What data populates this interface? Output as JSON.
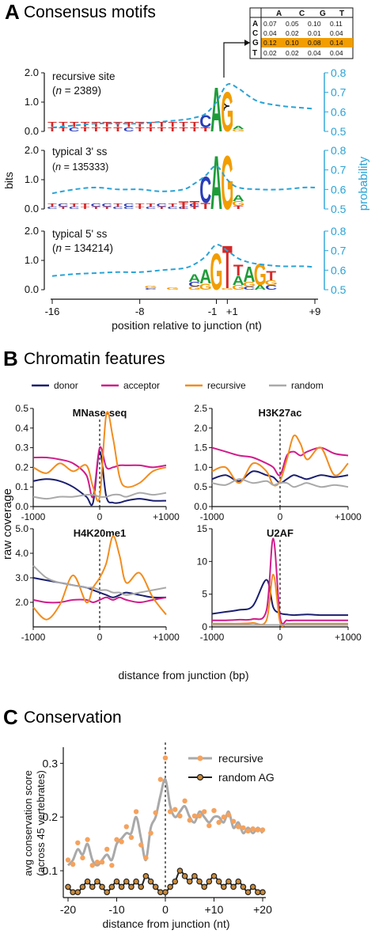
{
  "panelA": {
    "letter": "A",
    "title": "Consensus motifs",
    "y_label": "bits",
    "y2_label": "probability",
    "x_label": "position relative to junction (nt)",
    "x_ticks": [
      "-16",
      "-8",
      "-1",
      "+1",
      "+9"
    ],
    "bits_ticks": [
      "2.0",
      "1.0",
      "0.0"
    ],
    "prob_ticks": [
      "0.8",
      "0.7",
      "0.6",
      "0.5"
    ],
    "colors": {
      "A": "#1f9c3a",
      "C": "#2a3db8",
      "G": "#f29d00",
      "T": "#d62828",
      "probability": "#2aa3d6"
    },
    "table": {
      "header": [
        "A",
        "C",
        "G",
        "T"
      ],
      "rows": [
        {
          "base": "A",
          "values": [
            "0.07",
            "0.05",
            "0.10",
            "0.11"
          ]
        },
        {
          "base": "C",
          "values": [
            "0.04",
            "0.02",
            "0.01",
            "0.04"
          ]
        },
        {
          "base": "G",
          "values": [
            "0.12",
            "0.10",
            "0.08",
            "0.14"
          ],
          "highlight": true
        },
        {
          "base": "T",
          "values": [
            "0.02",
            "0.02",
            "0.04",
            "0.04"
          ]
        }
      ]
    },
    "motifs": [
      {
        "name": "recursive site",
        "n_label": "n",
        "n_value": "= 2389)"
      },
      {
        "name": "typical 3' ss",
        "n_label": "n",
        "n_value": "= 135333)"
      },
      {
        "name": "typical 5' ss",
        "n_label": "n",
        "n_value": "= 134214)"
      }
    ]
  },
  "panelB": {
    "letter": "B",
    "title": "Chromatin features",
    "y_label": "raw coverage",
    "x_label": "distance from junction (bp)",
    "x_ticks": [
      "-1000",
      "0",
      "+1000"
    ],
    "legend": [
      {
        "name": "donor",
        "color": "#1a1f6e"
      },
      {
        "name": "acceptor",
        "color": "#d01c8b"
      },
      {
        "name": "recursive",
        "color": "#f28c1e"
      },
      {
        "name": "random",
        "color": "#a9a9a9"
      }
    ]
  },
  "panelC": {
    "letter": "C",
    "title": "Conservation",
    "y_label_1": "avg conservation score",
    "y_label_2": "(across 45 vertebrates)",
    "x_label": "distance from junction (nt)",
    "legend": [
      {
        "name": "recursive",
        "color": "#f5a25d"
      },
      {
        "name": "random AG",
        "color": "#222222"
      }
    ]
  },
  "chart_data": [
    {
      "id": "A-recursive",
      "type": "line",
      "title": "recursive site (n = 2389)",
      "xlabel": "position relative to junction (nt)",
      "ylabel": "probability",
      "x": [
        -16,
        -14,
        -12,
        -10,
        -8,
        -6,
        -4,
        -3,
        -2,
        -1,
        1,
        2,
        3,
        4,
        6,
        8,
        9
      ],
      "y": [
        0.52,
        0.53,
        0.54,
        0.54,
        0.54,
        0.55,
        0.56,
        0.57,
        0.59,
        0.65,
        0.74,
        0.72,
        0.68,
        0.65,
        0.63,
        0.62,
        0.615
      ],
      "ylim": [
        0.5,
        0.8
      ]
    },
    {
      "id": "A-3ss",
      "type": "line",
      "title": "typical 3' ss (n = 135333)",
      "xlabel": "position relative to junction (nt)",
      "ylabel": "probability",
      "x": [
        -16,
        -14,
        -12,
        -10,
        -8,
        -6,
        -4,
        -3,
        -2,
        -1,
        1,
        2,
        4,
        6,
        8,
        9
      ],
      "y": [
        0.58,
        0.6,
        0.61,
        0.6,
        0.6,
        0.59,
        0.6,
        0.63,
        0.67,
        0.72,
        0.65,
        0.61,
        0.6,
        0.6,
        0.61,
        0.61
      ],
      "ylim": [
        0.5,
        0.8
      ]
    },
    {
      "id": "A-5ss",
      "type": "line",
      "title": "typical 5' ss (n = 134214)",
      "xlabel": "position relative to junction (nt)",
      "ylabel": "probability",
      "x": [
        -16,
        -14,
        -12,
        -10,
        -8,
        -6,
        -4,
        -3,
        -2,
        -1,
        1,
        2,
        3,
        4,
        6,
        8,
        9
      ],
      "y": [
        0.57,
        0.58,
        0.585,
        0.59,
        0.59,
        0.6,
        0.61,
        0.63,
        0.67,
        0.73,
        0.7,
        0.66,
        0.64,
        0.63,
        0.62,
        0.62,
        0.615
      ],
      "ylim": [
        0.5,
        0.8
      ]
    },
    {
      "id": "B-MNase",
      "type": "line",
      "title": "MNase-seq",
      "x": [
        -1000,
        -800,
        -600,
        -400,
        -200,
        -100,
        0,
        100,
        200,
        300,
        400,
        600,
        800,
        1000
      ],
      "ylim": [
        0,
        0.5
      ],
      "yticks": [
        "0.5",
        "0.4",
        "0.3",
        "0.2",
        "0.1",
        "0.0"
      ],
      "series": [
        {
          "name": "donor",
          "values": [
            0.13,
            0.14,
            0.13,
            0.1,
            0.05,
            0.02,
            0.28,
            0.05,
            0.02,
            0.02,
            0.03,
            0.04,
            0.03,
            0.03
          ]
        },
        {
          "name": "acceptor",
          "values": [
            0.25,
            0.25,
            0.24,
            0.22,
            0.16,
            0.05,
            0.3,
            0.2,
            0.2,
            0.21,
            0.21,
            0.21,
            0.2,
            0.21
          ]
        },
        {
          "name": "recursive",
          "values": [
            0.2,
            0.17,
            0.22,
            0.18,
            0.21,
            0.1,
            0.05,
            0.47,
            0.35,
            0.15,
            0.1,
            0.12,
            0.18,
            0.2
          ]
        },
        {
          "name": "random",
          "values": [
            0.05,
            0.04,
            0.05,
            0.05,
            0.06,
            0.06,
            0.05,
            0.05,
            0.06,
            0.06,
            0.05,
            0.07,
            0.06,
            0.07
          ]
        }
      ]
    },
    {
      "id": "B-H3K27ac",
      "type": "line",
      "title": "H3K27ac",
      "x": [
        -1000,
        -800,
        -600,
        -400,
        -200,
        -100,
        0,
        100,
        200,
        300,
        400,
        600,
        800,
        1000
      ],
      "ylim": [
        0,
        2.5
      ],
      "yticks": [
        "2.5",
        "2.0",
        "1.5",
        "1.0",
        "0.5",
        "0.0"
      ],
      "series": [
        {
          "name": "donor",
          "values": [
            0.7,
            0.8,
            0.65,
            0.9,
            0.8,
            0.75,
            0.6,
            0.7,
            0.8,
            0.75,
            0.7,
            0.8,
            0.75,
            0.8
          ]
        },
        {
          "name": "acceptor",
          "values": [
            1.5,
            1.4,
            1.3,
            1.25,
            1.1,
            1.0,
            0.8,
            1.3,
            1.4,
            1.3,
            1.4,
            1.5,
            1.35,
            1.3
          ]
        },
        {
          "name": "recursive",
          "values": [
            0.9,
            1.0,
            0.6,
            1.1,
            0.9,
            0.55,
            0.65,
            1.2,
            1.8,
            1.6,
            1.2,
            1.5,
            0.8,
            1.1
          ]
        },
        {
          "name": "random",
          "values": [
            0.6,
            0.55,
            0.7,
            0.6,
            0.65,
            0.55,
            0.6,
            0.6,
            0.5,
            0.55,
            0.6,
            0.5,
            0.55,
            0.5
          ]
        }
      ]
    },
    {
      "id": "B-H4K20me1",
      "type": "line",
      "title": "H4K20me1",
      "x": [
        -1000,
        -800,
        -600,
        -400,
        -200,
        -100,
        0,
        100,
        200,
        300,
        400,
        600,
        800,
        1000
      ],
      "ylim": [
        1.0,
        5.0
      ],
      "yticks": [
        "5.0",
        "4.0",
        "3.0",
        "2.0"
      ],
      "series": [
        {
          "name": "donor",
          "values": [
            3.0,
            2.9,
            2.8,
            2.7,
            2.6,
            2.5,
            2.4,
            2.3,
            2.2,
            2.3,
            2.4,
            2.3,
            2.2,
            2.2
          ]
        },
        {
          "name": "acceptor",
          "values": [
            2.1,
            2.0,
            2.0,
            2.1,
            2.1,
            2.0,
            2.1,
            2.2,
            2.1,
            2.2,
            2.1,
            2.0,
            2.1,
            2.2
          ]
        },
        {
          "name": "recursive",
          "values": [
            1.8,
            1.3,
            1.9,
            3.1,
            2.0,
            2.6,
            3.0,
            3.6,
            4.7,
            3.9,
            2.8,
            3.2,
            2.2,
            1.5
          ]
        },
        {
          "name": "random",
          "values": [
            3.5,
            3.0,
            2.8,
            2.7,
            2.6,
            2.6,
            2.5,
            2.5,
            2.4,
            2.4,
            2.3,
            2.4,
            2.5,
            2.6
          ]
        }
      ]
    },
    {
      "id": "B-U2AF",
      "type": "line",
      "title": "U2AF",
      "x": [
        -1000,
        -800,
        -600,
        -400,
        -200,
        -100,
        0,
        100,
        200,
        400,
        600,
        800,
        1000
      ],
      "ylim": [
        0,
        15
      ],
      "yticks": [
        "15",
        "10",
        "5",
        "0"
      ],
      "series": [
        {
          "name": "donor",
          "values": [
            2.0,
            2.3,
            2.6,
            3.2,
            7.2,
            3.0,
            2.1,
            1.9,
            1.8,
            1.9,
            1.8,
            1.8,
            1.8
          ]
        },
        {
          "name": "acceptor",
          "values": [
            1.0,
            1.0,
            1.1,
            1.2,
            2.5,
            13.5,
            1.5,
            1.0,
            1.0,
            1.0,
            1.0,
            1.0,
            1.0
          ]
        },
        {
          "name": "recursive",
          "values": [
            0.5,
            0.5,
            0.5,
            0.6,
            1.0,
            8.0,
            0.7,
            0.5,
            0.5,
            0.5,
            0.5,
            0.5,
            0.5
          ]
        },
        {
          "name": "random",
          "values": [
            0.3,
            0.3,
            0.3,
            0.3,
            0.3,
            0.3,
            0.3,
            0.3,
            0.3,
            0.3,
            0.3,
            0.3,
            0.3
          ]
        }
      ]
    },
    {
      "id": "C-conservation",
      "type": "line",
      "title": "Conservation",
      "xlabel": "distance from junction (nt)",
      "ylabel": "avg conservation score (across 45 vertebrates)",
      "ylim": [
        0.05,
        0.33
      ],
      "yticks": [
        "0.3",
        "0.2",
        "0.1"
      ],
      "xticks": [
        "-20",
        "-10",
        "0",
        "+10",
        "+20"
      ],
      "x": [
        -20,
        -19,
        -18,
        -17,
        -16,
        -15,
        -14,
        -13,
        -12,
        -11,
        -10,
        -9,
        -8,
        -7,
        -6,
        -5,
        -4,
        -3,
        -2,
        -1,
        0,
        1,
        2,
        3,
        4,
        5,
        6,
        7,
        8,
        9,
        10,
        11,
        12,
        13,
        14,
        15,
        16,
        17,
        18,
        19,
        20
      ],
      "series": [
        {
          "name": "recursive",
          "values": [
            0.11,
            0.12,
            0.14,
            0.13,
            0.15,
            0.12,
            0.11,
            0.12,
            0.13,
            0.12,
            0.15,
            0.16,
            0.17,
            0.17,
            0.2,
            0.16,
            0.12,
            0.18,
            0.2,
            0.24,
            0.27,
            0.22,
            0.2,
            0.21,
            0.22,
            0.2,
            0.19,
            0.21,
            0.2,
            0.19,
            0.2,
            0.2,
            0.19,
            0.21,
            0.18,
            0.19,
            0.17,
            0.18,
            0.17,
            0.18,
            0.17
          ]
        },
        {
          "name": "random AG",
          "values": [
            0.07,
            0.06,
            0.06,
            0.07,
            0.08,
            0.07,
            0.08,
            0.07,
            0.06,
            0.07,
            0.08,
            0.07,
            0.08,
            0.07,
            0.08,
            0.07,
            0.09,
            0.08,
            0.07,
            0.06,
            0.06,
            0.07,
            0.08,
            0.1,
            0.09,
            0.08,
            0.09,
            0.08,
            0.07,
            0.08,
            0.09,
            0.08,
            0.07,
            0.08,
            0.07,
            0.08,
            0.07,
            0.06,
            0.07,
            0.06,
            0.06
          ]
        }
      ],
      "scatter_offsets_note_free": true
    }
  ]
}
